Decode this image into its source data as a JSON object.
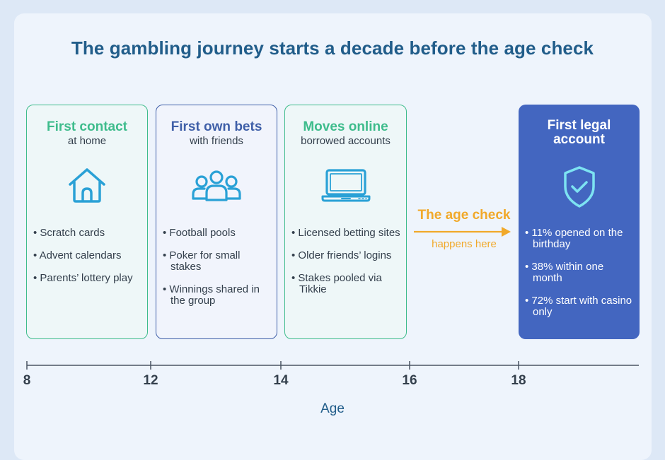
{
  "title": "The gambling journey starts a decade before the age check",
  "stages": [
    {
      "title": "First contact",
      "subtitle": "at home",
      "icon": "house-icon",
      "bullets": [
        "Scratch cards",
        "Advent calendars",
        "Parents’ lottery play"
      ]
    },
    {
      "title": "First own bets",
      "subtitle": "with friends",
      "icon": "group-icon",
      "bullets": [
        "Football pools",
        "Poker for small stakes",
        "Winnings shared in the group"
      ]
    },
    {
      "title": "Moves online",
      "subtitle": "borrowed accounts",
      "icon": "laptop-icon",
      "bullets": [
        "Licensed betting sites",
        "Older friends’ logins",
        "Stakes pooled via Tikkie"
      ]
    }
  ],
  "final_stage": {
    "title": "First legal account",
    "icon": "shield-check-icon",
    "bullets": [
      "11% opened on the birthday",
      "38% within one month",
      "72% start with casino only"
    ]
  },
  "age_check": {
    "label": "The age check",
    "sublabel": "happens here"
  },
  "axis": {
    "label": "Age",
    "ticks": [
      "8",
      "12",
      "14",
      "16",
      "18"
    ]
  },
  "colors": {
    "title": "#215d8a",
    "green": "#3ebc8c",
    "blue": "#3f5fa8",
    "final_fill": "#4366c0",
    "accent": "#f1a92a"
  }
}
